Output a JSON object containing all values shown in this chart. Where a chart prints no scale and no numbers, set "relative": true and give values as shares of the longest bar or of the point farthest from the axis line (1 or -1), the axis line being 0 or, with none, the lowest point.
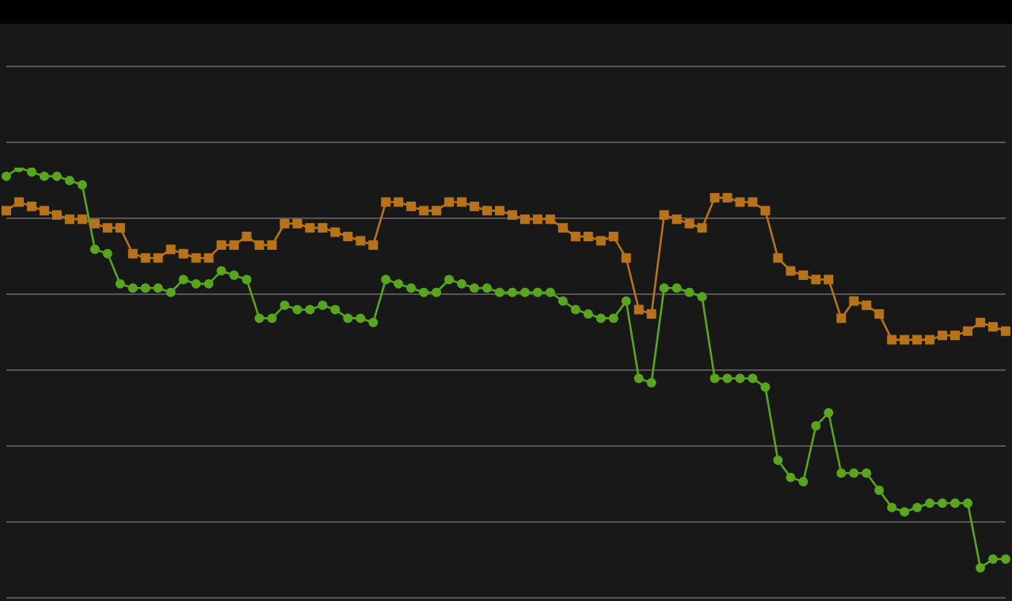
{
  "chart_data": {
    "type": "line",
    "relative": true,
    "grid": "y",
    "tick_labels": false,
    "categories": [
      null,
      null,
      null,
      null,
      null,
      null,
      null,
      null,
      null,
      null,
      null,
      null,
      null,
      null,
      null,
      null,
      null,
      null,
      null,
      null,
      null,
      null,
      null,
      null,
      null,
      null,
      null,
      null,
      null,
      null,
      null,
      null,
      null,
      null,
      null,
      null,
      null,
      null,
      null,
      null,
      null,
      null,
      null,
      null,
      null,
      null,
      null,
      null,
      null,
      null,
      null,
      null,
      null,
      null,
      null,
      null,
      null,
      null,
      null,
      null,
      null,
      null,
      null,
      null,
      null,
      null,
      null,
      null,
      null,
      null,
      null,
      null,
      null,
      null,
      null,
      null,
      null,
      null,
      null,
      null
    ],
    "series": [
      {
        "color": "#b8731a",
        "marker": "square",
        "values": [
          0.9,
          0.92,
          0.91,
          0.9,
          0.89,
          0.88,
          0.88,
          0.87,
          0.86,
          0.86,
          0.8,
          0.79,
          0.79,
          0.81,
          0.8,
          0.79,
          0.79,
          0.82,
          0.82,
          0.84,
          0.82,
          0.82,
          0.87,
          0.87,
          0.86,
          0.86,
          0.85,
          0.84,
          0.83,
          0.82,
          0.92,
          0.92,
          0.91,
          0.9,
          0.9,
          0.92,
          0.92,
          0.91,
          0.9,
          0.9,
          0.89,
          0.88,
          0.88,
          0.88,
          0.86,
          0.84,
          0.84,
          0.83,
          0.84,
          0.79,
          0.67,
          0.66,
          0.89,
          0.88,
          0.87,
          0.86,
          0.93,
          0.93,
          0.92,
          0.92,
          0.9,
          0.79,
          0.76,
          0.75,
          0.74,
          0.74,
          0.65,
          0.69,
          0.68,
          0.66,
          0.6,
          0.6,
          0.6,
          0.6,
          0.61,
          0.61,
          0.62,
          0.64,
          0.63,
          0.62
        ]
      },
      {
        "color": "#5aa51e",
        "marker": "circle",
        "values": [
          0.98,
          1.0,
          0.99,
          0.98,
          0.98,
          0.97,
          0.96,
          0.81,
          0.8,
          0.73,
          0.72,
          0.72,
          0.72,
          0.71,
          0.74,
          0.73,
          0.73,
          0.76,
          0.75,
          0.74,
          0.65,
          0.65,
          0.68,
          0.67,
          0.67,
          0.68,
          0.67,
          0.65,
          0.65,
          0.64,
          0.74,
          0.73,
          0.72,
          0.71,
          0.71,
          0.74,
          0.73,
          0.72,
          0.72,
          0.71,
          0.71,
          0.71,
          0.71,
          0.71,
          0.69,
          0.67,
          0.66,
          0.65,
          0.65,
          0.69,
          0.51,
          0.5,
          0.72,
          0.72,
          0.71,
          0.7,
          0.51,
          0.51,
          0.51,
          0.51,
          0.49,
          0.32,
          0.28,
          0.27,
          0.4,
          0.43,
          0.29,
          0.29,
          0.29,
          0.25,
          0.21,
          0.2,
          0.21,
          0.22,
          0.22,
          0.22,
          0.22,
          0.07,
          0.09,
          0.09
        ]
      }
    ]
  }
}
